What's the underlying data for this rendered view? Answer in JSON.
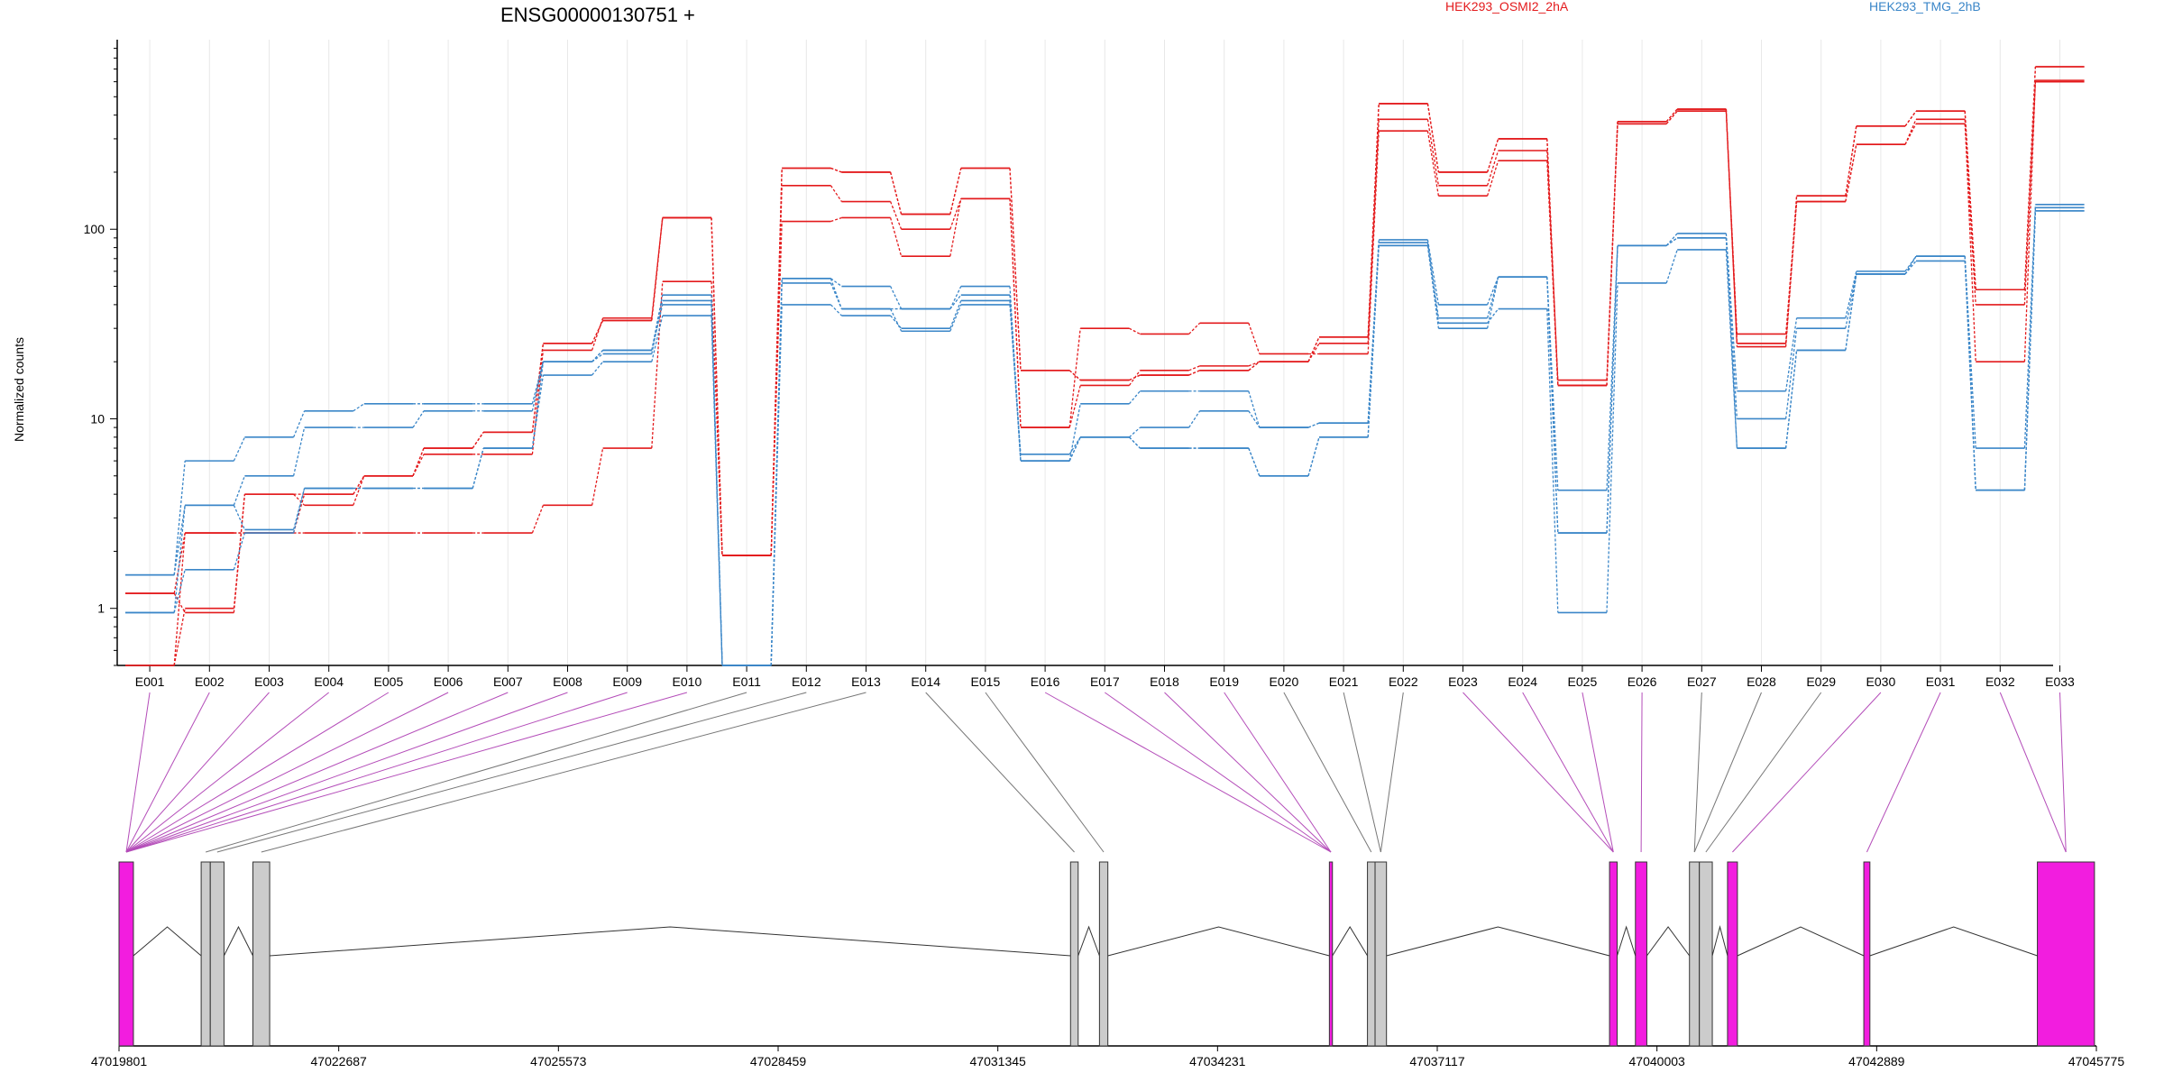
{
  "chart_data": {
    "type": "line",
    "title": "ENSG00000130751 +",
    "ylabel": "Normalized counts",
    "y_scale": "log",
    "ylim": [
      0.5,
      1000
    ],
    "y_ticks": [
      1,
      10,
      100
    ],
    "y_tick_labels": [
      "1",
      "10",
      "100"
    ],
    "categories": [
      "E001",
      "E002",
      "E003",
      "E004",
      "E005",
      "E006",
      "E007",
      "E008",
      "E009",
      "E010",
      "E011",
      "E012",
      "E013",
      "E014",
      "E015",
      "E016",
      "E017",
      "E018",
      "E019",
      "E020",
      "E021",
      "E022",
      "E023",
      "E024",
      "E025",
      "E026",
      "E027",
      "E028",
      "E029",
      "E030",
      "E031",
      "E032",
      "E033"
    ],
    "legend": [
      {
        "name": "HEK293_OSMI2_2hA",
        "color": "#e31a1c"
      },
      {
        "name": "HEK293_TMG_2hB",
        "color": "#3a86c8"
      }
    ],
    "series": [
      {
        "group": "HEK293_OSMI2_2hA",
        "color": "#e31a1c",
        "values": [
          0.5,
          1.0,
          4.0,
          4.0,
          5.0,
          7.0,
          8.5,
          25,
          33,
          115,
          1.9,
          210,
          200,
          120,
          210,
          18,
          16,
          17,
          18,
          20,
          27,
          460,
          200,
          300,
          15,
          370,
          430,
          25,
          150,
          350,
          420,
          48,
          720
        ]
      },
      {
        "group": "HEK293_OSMI2_2hA",
        "color": "#e31a1c",
        "values": [
          1.2,
          2.5,
          2.5,
          4.0,
          5.0,
          7.0,
          8.5,
          25,
          33,
          115,
          1.9,
          210,
          200,
          120,
          210,
          18,
          16,
          17,
          18,
          20,
          27,
          460,
          200,
          300,
          15,
          370,
          430,
          25,
          150,
          350,
          420,
          48,
          720
        ]
      },
      {
        "group": "HEK293_OSMI2_2hA",
        "color": "#e31a1c",
        "values": [
          0.5,
          2.5,
          2.5,
          2.5,
          2.5,
          2.5,
          2.5,
          3.5,
          7.0,
          53,
          1.9,
          170,
          140,
          100,
          145,
          9,
          15,
          18,
          19,
          20,
          25,
          380,
          170,
          260,
          16,
          360,
          420,
          24,
          140,
          280,
          380,
          20,
          610
        ]
      },
      {
        "group": "HEK293_OSMI2_2hA",
        "color": "#e31a1c",
        "values": [
          1.2,
          0.95,
          4.0,
          3.5,
          5.0,
          6.5,
          6.5,
          23,
          34,
          115,
          1.9,
          110,
          115,
          72,
          145,
          9,
          30,
          28,
          32,
          22,
          22,
          330,
          150,
          230,
          15,
          360,
          420,
          28,
          140,
          280,
          360,
          40,
          600
        ]
      },
      {
        "group": "HEK293_TMG_2hB",
        "color": "#3a86c8",
        "values": [
          1.5,
          6.0,
          8.0,
          11,
          12,
          12,
          12,
          20,
          23,
          45,
          0.5,
          55,
          50,
          38,
          50,
          6,
          8,
          9,
          11,
          9,
          9.5,
          88,
          40,
          56,
          4.2,
          82,
          95,
          14,
          34,
          60,
          72,
          7,
          135
        ]
      },
      {
        "group": "HEK293_TMG_2hB",
        "color": "#3a86c8",
        "values": [
          0.95,
          3.5,
          5.0,
          9.0,
          9.0,
          11,
          11,
          20,
          22,
          42,
          0.5,
          52,
          38,
          38,
          45,
          6,
          12,
          14,
          14,
          9,
          9.5,
          85,
          34,
          56,
          2.5,
          82,
          90,
          10,
          30,
          58,
          72,
          4.2,
          130
        ]
      },
      {
        "group": "HEK293_TMG_2hB",
        "color": "#3a86c8",
        "values": [
          0.95,
          1.6,
          2.5,
          4.3,
          4.3,
          4.3,
          7.0,
          17,
          20,
          35,
          0.5,
          40,
          35,
          30,
          42,
          6,
          8,
          7,
          7,
          5,
          8,
          82,
          32,
          38,
          0.95,
          52,
          78,
          7,
          23,
          58,
          68,
          4.2,
          125
        ]
      },
      {
        "group": "HEK293_TMG_2hB",
        "color": "#3a86c8",
        "values": [
          1.5,
          3.5,
          2.6,
          4.3,
          4.3,
          4.3,
          7.0,
          20,
          23,
          40,
          0.5,
          55,
          38,
          29,
          40,
          6.5,
          8,
          7,
          7,
          5,
          8,
          82,
          30,
          56,
          2.5,
          82,
          90,
          7,
          23,
          58,
          72,
          4.2,
          125
        ]
      }
    ],
    "gene_model": {
      "x_ticks": [
        47019801,
        47022687,
        47025573,
        47028459,
        47031345,
        47034231,
        47037117,
        47040003,
        47042889,
        47045775
      ],
      "x_tick_labels": [
        "47019801",
        "47022687",
        "47025573",
        "47028459",
        "47031345",
        "47034231",
        "47037117",
        "47040003",
        "47042889",
        "47045775"
      ],
      "xlim": [
        47019801,
        47045775
      ],
      "exons": [
        {
          "start": 47019801,
          "end": 47019990,
          "highlighted": true
        },
        {
          "start": 47020880,
          "end": 47021000,
          "highlighted": false
        },
        {
          "start": 47021000,
          "end": 47021180,
          "highlighted": false
        },
        {
          "start": 47021560,
          "end": 47021780,
          "highlighted": false
        },
        {
          "start": 47032300,
          "end": 47032400,
          "highlighted": false
        },
        {
          "start": 47032680,
          "end": 47032790,
          "highlighted": false
        },
        {
          "start": 47035700,
          "end": 47035740,
          "highlighted": true
        },
        {
          "start": 47036200,
          "end": 47036300,
          "highlighted": false
        },
        {
          "start": 47036300,
          "end": 47036450,
          "highlighted": false
        },
        {
          "start": 47039380,
          "end": 47039480,
          "highlighted": true
        },
        {
          "start": 47039720,
          "end": 47039870,
          "highlighted": true
        },
        {
          "start": 47040430,
          "end": 47040560,
          "highlighted": false
        },
        {
          "start": 47040560,
          "end": 47040730,
          "highlighted": false
        },
        {
          "start": 47040930,
          "end": 47041060,
          "highlighted": true
        },
        {
          "start": 47042720,
          "end": 47042800,
          "highlighted": true
        },
        {
          "start": 47045000,
          "end": 47045750,
          "highlighted": true
        }
      ]
    }
  }
}
